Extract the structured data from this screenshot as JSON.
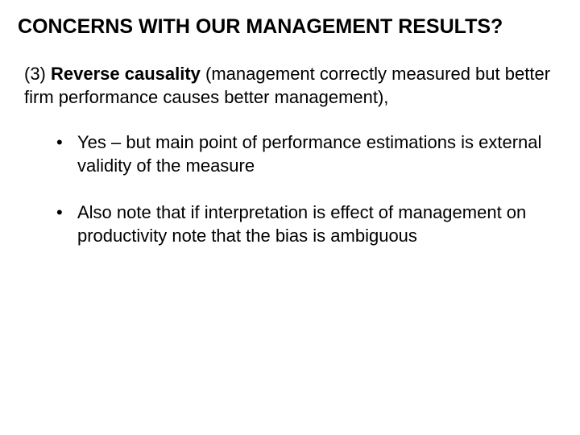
{
  "title": "CONCERNS WITH OUR MANAGEMENT RESULTS?",
  "item": {
    "number": "(3)",
    "label": "Reverse causality",
    "rest": " (management correctly measured but better firm performance causes better management),"
  },
  "bullets": [
    "Yes – but main point of performance estimations is external validity of the measure",
    "Also note that if interpretation is effect of management on productivity note that the bias is ambiguous"
  ],
  "colors": {
    "background": "#ffffff",
    "text": "#000000"
  },
  "typography": {
    "title_fontsize": 25,
    "title_weight": "bold",
    "body_fontsize": 22,
    "font_family": "Arial"
  }
}
